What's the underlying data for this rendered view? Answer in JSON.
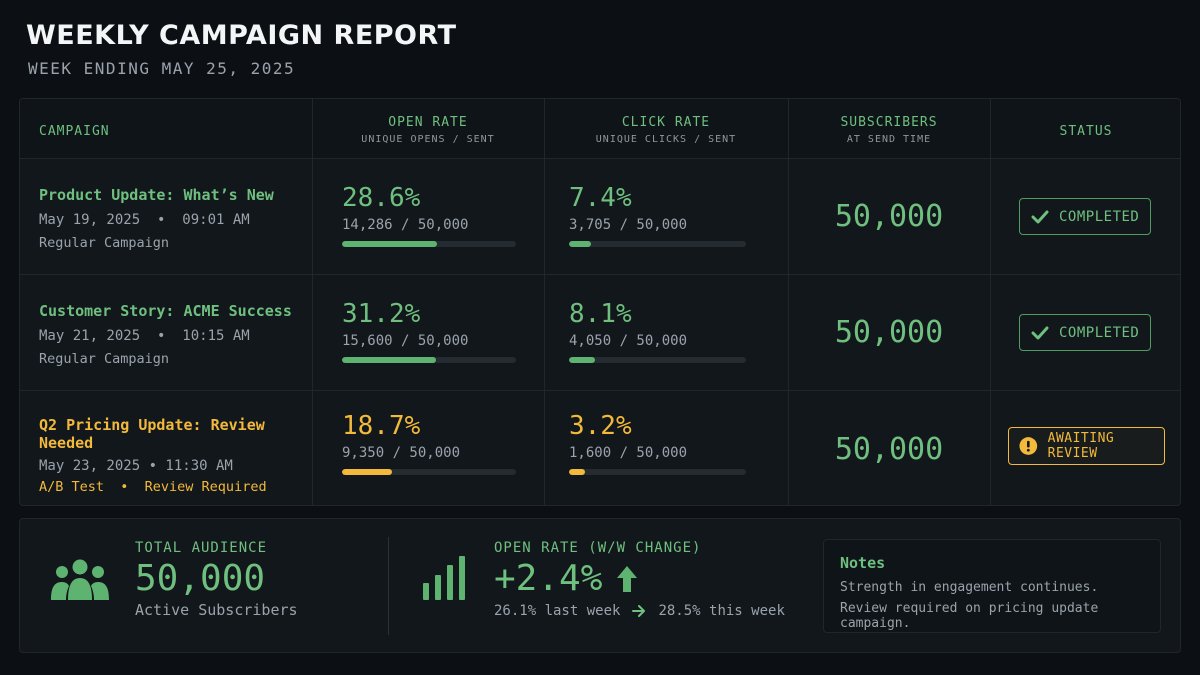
{
  "header": {
    "title": "WEEKLY CAMPAIGN REPORT",
    "subtitle": "WEEK ENDING MAY 25, 2025"
  },
  "table": {
    "columns": {
      "campaign": "CAMPAIGN",
      "open_rate": "OPEN RATE",
      "open_rate_sub": "UNIQUE OPENS / SENT",
      "click_rate": "CLICK RATE",
      "click_rate_sub": "UNIQUE CLICKS / SENT",
      "subscribers": "SUBSCRIBERS",
      "subscribers_sub": "AT SEND TIME",
      "status": "STATUS"
    },
    "rows": [
      {
        "name": "Product Update: What’s New",
        "date": "May 19, 2025  •  09:01 AM",
        "type": "Regular Campaign",
        "open_rate": "28.6%",
        "open_detail": "14,286 / 50,000",
        "open_fraction": 0.286,
        "click_rate": "7.4%",
        "click_detail": "3,705 / 50,000",
        "click_fraction": 0.074,
        "subscribers": "50,000",
        "status": "COMPLETED",
        "status_icon": "check-icon"
      },
      {
        "name": "Customer Story: ACME Success",
        "date": "May 21, 2025  •  10:15 AM",
        "type": "Regular Campaign",
        "open_rate": "31.2%",
        "open_detail": "15,600 / 50,000",
        "open_fraction": 0.312,
        "click_rate": "8.1%",
        "click_detail": "4,050 / 50,000",
        "click_fraction": 0.081,
        "subscribers": "50,000",
        "status": "COMPLETED",
        "status_icon": "check-icon"
      },
      {
        "name": "Q2 Pricing Update: Review Needed",
        "date": "May 23, 2025  •  11:30 AM",
        "type": "A/B Test  •  Review Required",
        "open_rate": "18.7%",
        "open_detail": "9,350 / 50,000",
        "open_fraction": 0.187,
        "click_rate": "3.2%",
        "click_detail": "1,600 / 50,000",
        "click_fraction": 0.032,
        "subscribers": "50,000",
        "status": "AWAITING REVIEW",
        "status_icon": "exclamation-icon"
      }
    ]
  },
  "summary": {
    "audience_label": "TOTAL AUDIENCE",
    "audience_value": "50,000",
    "audience_sub": "Active Subscribers",
    "audience_icon": "users-icon",
    "open_label": "OPEN RATE (W/W CHANGE)",
    "open_value": "+2.4%",
    "open_icon": "bar-chart-icon",
    "trend_icon": "arrow-up-icon",
    "last_week": "26.1% last week",
    "this_week": "28.5% this week",
    "notes_title": "Notes",
    "notes_lines": [
      "Strength in engagement continues.",
      "Review required on pricing update campaign."
    ]
  },
  "colors": {
    "accent": "#6fbf7f",
    "warning": "#f2b93a",
    "background": "#0c1014"
  }
}
